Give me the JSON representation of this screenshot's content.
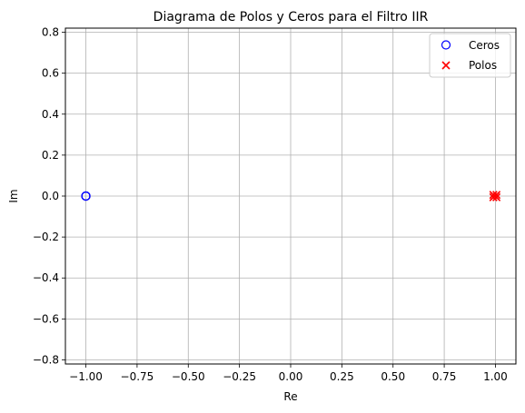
{
  "chart_data": {
    "type": "scatter",
    "title": "Diagrama de Polos y Ceros para el Filtro IIR",
    "xlabel": "Re",
    "ylabel": "Im",
    "xlim": [
      -1.1,
      1.1
    ],
    "ylim": [
      -0.82,
      0.82
    ],
    "x_ticks": [
      -1.0,
      -0.75,
      -0.5,
      -0.25,
      0.0,
      0.25,
      0.5,
      0.75,
      1.0
    ],
    "x_tick_labels": [
      "−1.00",
      "−0.75",
      "−0.50",
      "−0.25",
      "0.00",
      "0.25",
      "0.50",
      "0.75",
      "1.00"
    ],
    "y_ticks": [
      -0.8,
      -0.6,
      -0.4,
      -0.2,
      0.0,
      0.2,
      0.4,
      0.6,
      0.8
    ],
    "y_tick_labels": [
      "−0.8",
      "−0.6",
      "−0.4",
      "−0.2",
      "0.0",
      "0.2",
      "0.4",
      "0.6",
      "0.8"
    ],
    "grid": true,
    "legend_position": "top-right",
    "series": [
      {
        "name": "Ceros",
        "marker": "circle-open",
        "color": "#0000ff",
        "points": [
          {
            "x": -1.0,
            "y": 0.0
          },
          {
            "x": -1.0,
            "y": 0.0
          },
          {
            "x": -1.0,
            "y": 0.0
          },
          {
            "x": -1.0,
            "y": 0.0
          }
        ]
      },
      {
        "name": "Polos",
        "marker": "x",
        "color": "#ff0000",
        "points": [
          {
            "x": 0.99,
            "y": 0.006
          },
          {
            "x": 0.99,
            "y": -0.006
          },
          {
            "x": 1.005,
            "y": 0.006
          },
          {
            "x": 1.005,
            "y": -0.006
          }
        ]
      }
    ]
  }
}
